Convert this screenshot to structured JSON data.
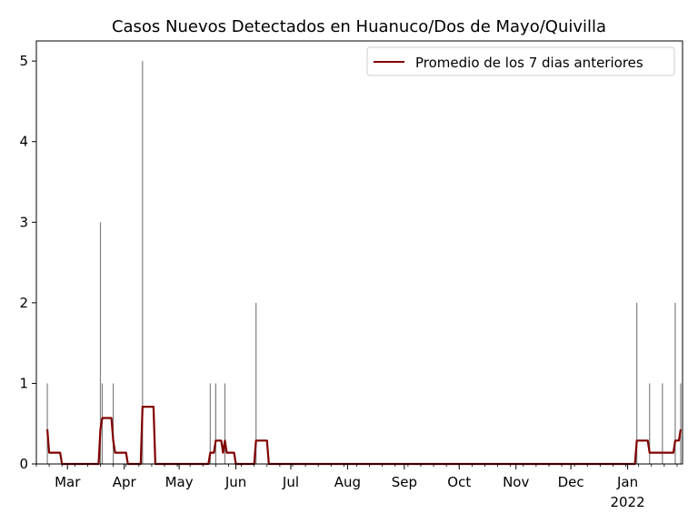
{
  "chart_data": {
    "type": "bar",
    "title": "Casos Nuevos Detectados en Huanuco/Dos de Mayo/Quivilla",
    "xlabel": "",
    "ylabel": "",
    "ylim": [
      0,
      5.25
    ],
    "xlim": [
      "2021-02-12",
      "2022-01-31"
    ],
    "yticks": [
      0,
      1,
      2,
      3,
      4,
      5
    ],
    "xticks": [
      {
        "date": "2021-03-01",
        "label": "Mar"
      },
      {
        "date": "2021-04-01",
        "label": "Apr"
      },
      {
        "date": "2021-05-01",
        "label": "May"
      },
      {
        "date": "2021-06-01",
        "label": "Jun"
      },
      {
        "date": "2021-07-01",
        "label": "Jul"
      },
      {
        "date": "2021-08-01",
        "label": "Aug"
      },
      {
        "date": "2021-09-01",
        "label": "Sep"
      },
      {
        "date": "2021-10-01",
        "label": "Oct"
      },
      {
        "date": "2021-11-01",
        "label": "Nov"
      },
      {
        "date": "2021-12-01",
        "label": "Dec"
      },
      {
        "date": "2022-01-01",
        "label": "Jan",
        "sublabel": "2022"
      }
    ],
    "legend": {
      "placement": "top-right"
    },
    "grid": false,
    "series": [
      {
        "kind": "bar",
        "color": "#808080",
        "points": [
          {
            "x": "2021-02-18",
            "y": 1
          },
          {
            "x": "2021-03-19",
            "y": 3
          },
          {
            "x": "2021-03-20",
            "y": 1
          },
          {
            "x": "2021-03-26",
            "y": 1
          },
          {
            "x": "2021-04-11",
            "y": 5
          },
          {
            "x": "2021-05-18",
            "y": 1
          },
          {
            "x": "2021-05-21",
            "y": 1
          },
          {
            "x": "2021-05-26",
            "y": 1
          },
          {
            "x": "2021-06-12",
            "y": 2
          },
          {
            "x": "2022-01-06",
            "y": 2
          },
          {
            "x": "2022-01-13",
            "y": 1
          },
          {
            "x": "2022-01-20",
            "y": 1
          },
          {
            "x": "2022-01-27",
            "y": 2
          },
          {
            "x": "2022-01-30",
            "y": 1
          }
        ]
      },
      {
        "kind": "line",
        "name": "Promedio de los 7 dias anteriores",
        "color": "#800000",
        "points": [
          {
            "x": "2021-02-18",
            "y": 0.43
          },
          {
            "x": "2021-02-19",
            "y": 0.14
          },
          {
            "x": "2021-02-25",
            "y": 0.14
          },
          {
            "x": "2021-02-26",
            "y": 0
          },
          {
            "x": "2021-03-18",
            "y": 0
          },
          {
            "x": "2021-03-19",
            "y": 0.43
          },
          {
            "x": "2021-03-20",
            "y": 0.57
          },
          {
            "x": "2021-03-25",
            "y": 0.57
          },
          {
            "x": "2021-03-26",
            "y": 0.29
          },
          {
            "x": "2021-03-27",
            "y": 0.14
          },
          {
            "x": "2021-04-02",
            "y": 0.14
          },
          {
            "x": "2021-04-03",
            "y": 0
          },
          {
            "x": "2021-04-10",
            "y": 0
          },
          {
            "x": "2021-04-11",
            "y": 0.71
          },
          {
            "x": "2021-04-17",
            "y": 0.71
          },
          {
            "x": "2021-04-18",
            "y": 0
          },
          {
            "x": "2021-05-17",
            "y": 0
          },
          {
            "x": "2021-05-18",
            "y": 0.14
          },
          {
            "x": "2021-05-20",
            "y": 0.14
          },
          {
            "x": "2021-05-21",
            "y": 0.29
          },
          {
            "x": "2021-05-24",
            "y": 0.29
          },
          {
            "x": "2021-05-25",
            "y": 0.14
          },
          {
            "x": "2021-05-26",
            "y": 0.29
          },
          {
            "x": "2021-05-27",
            "y": 0.14
          },
          {
            "x": "2021-05-31",
            "y": 0.14
          },
          {
            "x": "2021-06-01",
            "y": 0
          },
          {
            "x": "2021-06-11",
            "y": 0
          },
          {
            "x": "2021-06-12",
            "y": 0.29
          },
          {
            "x": "2021-06-18",
            "y": 0.29
          },
          {
            "x": "2021-06-19",
            "y": 0
          },
          {
            "x": "2022-01-05",
            "y": 0
          },
          {
            "x": "2022-01-06",
            "y": 0.29
          },
          {
            "x": "2022-01-12",
            "y": 0.29
          },
          {
            "x": "2022-01-13",
            "y": 0.14
          },
          {
            "x": "2022-01-26",
            "y": 0.14
          },
          {
            "x": "2022-01-27",
            "y": 0.29
          },
          {
            "x": "2022-01-29",
            "y": 0.29
          },
          {
            "x": "2022-01-30",
            "y": 0.43
          }
        ]
      }
    ]
  }
}
